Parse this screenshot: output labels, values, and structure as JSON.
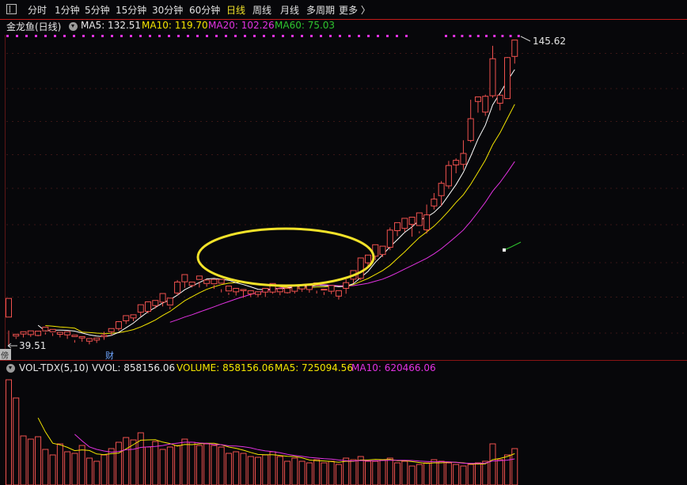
{
  "toolbar": {
    "items": [
      "分时",
      "1分钟",
      "5分钟",
      "15分钟",
      "30分钟",
      "60分钟",
      "日线",
      "周线",
      "月线",
      "多周期",
      "更多 〉"
    ],
    "active_index": 6
  },
  "info": {
    "stock_name": "金龙鱼(日线)",
    "ma5_label": "MA5: 132.51",
    "ma10_label": "MA10: 119.70",
    "ma20_label": "MA20: 102.26",
    "ma60_label": "MA60: 75.03"
  },
  "markers": {
    "high_label": "145.62",
    "low_label": "39.51",
    "fin_marker": "财",
    "edge_marker": "傍"
  },
  "volume": {
    "indicator": "VOL-TDX(5,10)",
    "vvol_label": "VVOL: 858156.06",
    "volume_label": "VOLUME: 858156.06",
    "ma5_label": "MA5: 725094.56",
    "ma10_label": "MA10: 620466.06"
  },
  "colors": {
    "up": "#f0514e",
    "down": "#54ffff",
    "ma5": "#ffffff",
    "ma10": "#f4e500",
    "ma20": "#e232e2",
    "ma60": "#2ec42e",
    "active_tab": "#f2e229",
    "highlight_ellipse": "#f2e229"
  },
  "chart_data": {
    "type": "candlestick",
    "title": "金龙鱼(日线)",
    "price_ylim": [
      39.51,
      145.62
    ],
    "candles": [
      [
        49.5,
        56.0,
        44.8,
        39.5
      ],
      [
        42.9,
        43.5,
        42.6,
        41.9
      ],
      [
        43.6,
        44.4,
        44.2,
        42.4
      ],
      [
        43.4,
        44.7,
        43.7,
        42.6
      ],
      [
        43.1,
        44.6,
        44.3,
        42.8
      ],
      [
        44.7,
        46.0,
        44.2,
        43.4
      ],
      [
        44.4,
        45.2,
        43.9,
        42.9
      ],
      [
        43.5,
        44.2,
        43.6,
        42.4
      ],
      [
        43.3,
        44.4,
        43.2,
        41.9
      ],
      [
        42.7,
        43.2,
        41.5,
        40.6
      ],
      [
        42.2,
        42.7,
        42.1,
        40.9
      ],
      [
        41.1,
        42.0,
        41.7,
        40.0
      ],
      [
        41.5,
        42.2,
        41.7,
        40.5
      ],
      [
        42.7,
        43.2,
        44.4,
        41.6
      ],
      [
        44.4,
        45.5,
        44.8,
        43.1
      ],
      [
        45.5,
        47.9,
        48.1,
        44.7
      ],
      [
        48.2,
        50.0,
        49.3,
        47.1
      ],
      [
        49.2,
        50.3,
        50.3,
        48.1
      ],
      [
        51.2,
        53.8,
        51.3,
        49.7
      ],
      [
        51.5,
        54.8,
        53.2,
        50.8
      ],
      [
        53.5,
        55.3,
        54.7,
        52.5
      ],
      [
        54.7,
        57.7,
        54.8,
        53.2
      ],
      [
        53.7,
        56.1,
        53.2,
        52.2
      ],
      [
        57.9,
        61.7,
        62.4,
        57.1
      ],
      [
        61.8,
        64.3,
        62.0,
        59.7
      ],
      [
        60.5,
        61.7,
        61.0,
        59.8
      ],
      [
        62.6,
        63.8,
        61.8,
        59.8
      ],
      [
        61.2,
        62.4,
        61.0,
        60.1
      ],
      [
        61.1,
        62.6,
        60.7,
        59.3
      ],
      [
        61.3,
        62.6,
        59.2,
        58.1
      ],
      [
        58.6,
        60.3,
        58.0,
        57.2
      ],
      [
        58.3,
        59.5,
        58.6,
        57.0
      ],
      [
        58.7,
        59.1,
        58.6,
        56.2
      ],
      [
        57.6,
        58.7,
        57.5,
        56.5
      ],
      [
        57.4,
        58.3,
        58.1,
        56.4
      ],
      [
        58.2,
        59.5,
        58.4,
        56.5
      ],
      [
        58.2,
        61.2,
        58.6,
        57.6
      ],
      [
        58.3,
        59.4,
        58.1,
        57.1
      ],
      [
        58.0,
        59.5,
        58.2,
        57.7
      ],
      [
        58.5,
        60.6,
        59.0,
        57.7
      ],
      [
        59.3,
        60.6,
        59.3,
        58.3
      ],
      [
        59.1,
        60.5,
        59.8,
        58.0
      ],
      [
        60.6,
        61.4,
        58.7,
        57.7
      ],
      [
        58.9,
        59.2,
        58.2,
        57.2
      ],
      [
        58.5,
        60.5,
        59.2,
        57.5
      ],
      [
        56.8,
        58.7,
        58.0,
        55.6
      ],
      [
        59.5,
        61.5,
        62.7,
        57.6
      ],
      [
        62.7,
        65.7,
        62.9,
        61.3
      ],
      [
        63.0,
        70.1,
        67.5,
        62.4
      ],
      [
        68.4,
        71.1,
        69.7,
        66.5
      ],
      [
        70.7,
        74.7,
        71.4,
        69.3
      ],
      [
        71.3,
        74.2,
        73.7,
        70.4
      ],
      [
        73.8,
        79.8,
        80.7,
        72.8
      ],
      [
        79.6,
        82.4,
        80.4,
        77.7
      ],
      [
        80.4,
        83.9,
        81.6,
        79.2
      ],
      [
        81.8,
        84.3,
        83.0,
        77.5
      ],
      [
        81.4,
        85.8,
        79.4,
        78.7
      ],
      [
        79.9,
        85.1,
        88.7,
        78.6
      ],
      [
        88.2,
        90.6,
        92.7,
        87.0
      ],
      [
        91.8,
        96.1,
        96.9,
        88.2
      ],
      [
        95.2,
        102.3,
        103.9,
        94.2
      ],
      [
        102.5,
        104.1,
        104.8,
        99.6
      ],
      [
        102.7,
        106.5,
        111.1,
        100.8
      ],
      [
        111.0,
        118.6,
        125.2,
        110.4
      ],
      [
        124.6,
        126.2,
        125.5,
        120.7
      ],
      [
        120.9,
        126.4,
        127.0,
        119.6
      ],
      [
        126.6,
        139.5,
        144.0,
        125.9
      ],
      [
        124.0,
        126.8,
        124.7,
        121.5
      ],
      [
        125.6,
        139.9,
        140.1,
        125.8
      ],
      [
        140.3,
        146.0,
        144.4,
        137.8
      ]
    ],
    "volume_note": "volume shown as bars below price chart; MA5 and MA10 lines overlaid"
  }
}
